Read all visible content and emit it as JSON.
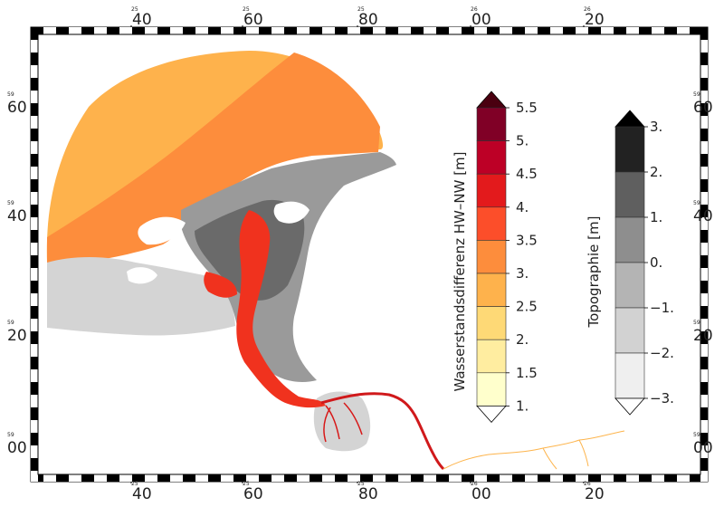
{
  "grid": {
    "x_labels": [
      {
        "small": "25",
        "big": "40"
      },
      {
        "small": "25",
        "big": "60"
      },
      {
        "small": "25",
        "big": "80"
      },
      {
        "small": "26",
        "big": "00"
      },
      {
        "small": "26",
        "big": "20"
      }
    ],
    "y_labels": [
      {
        "small": "59",
        "big": "60"
      },
      {
        "small": "59",
        "big": "40"
      },
      {
        "small": "59",
        "big": "20"
      },
      {
        "small": "59",
        "big": "00"
      }
    ]
  },
  "colorbar_water": {
    "title": "Wasserstandsdifferenz HW–NW [m]",
    "labels": [
      "5.5",
      "5.",
      "4.5",
      "4.",
      "3.5",
      "3.",
      "2.5",
      "2.",
      "1.5",
      "1."
    ],
    "colors": [
      "#800026",
      "#bd0026",
      "#e31a1c",
      "#fc4e2a",
      "#fd8d3c",
      "#feb24c",
      "#fed976",
      "#ffeda0",
      "#ffffcc"
    ],
    "over_color": "#4a0010"
  },
  "colorbar_topo": {
    "title": "Topographie [m]",
    "labels": [
      "3.",
      "2.",
      "1.",
      "0.",
      "−1.",
      "−2.",
      "−3."
    ],
    "colors": [
      "#222222",
      "#5f5f5f",
      "#8e8e8e",
      "#b4b4b4",
      "#d2d2d2",
      "#efefef"
    ],
    "over_color": "#000000"
  },
  "map_colors": {
    "open_sea_outer": "#feb24c",
    "open_sea_inner": "#fd8d3c",
    "channel": "#f0321e",
    "channel_deep": "#d71818",
    "tidal_flat_light": "#d4d4d4",
    "tidal_flat_mid": "#9a9a9a",
    "tidal_flat_dark": "#6a6a6a",
    "flat_water": "#feb24c",
    "river_upstream": "#d0191b",
    "river_far": "#fdb44c"
  }
}
